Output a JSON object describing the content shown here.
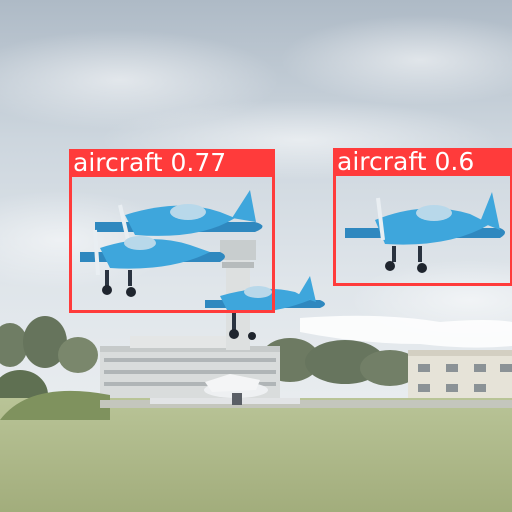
{
  "detections": [
    {
      "label": "aircraft",
      "score": "0.77",
      "color": "#ff3b3b"
    },
    {
      "label": "aircraft",
      "score": "0.6",
      "color": "#ff3b3b"
    }
  ],
  "scene": {
    "sky_color": "#c9d3db",
    "grass_color": "#a8b585",
    "plane_color": "#3a9fd6",
    "smoke_color": "#ffffff"
  }
}
